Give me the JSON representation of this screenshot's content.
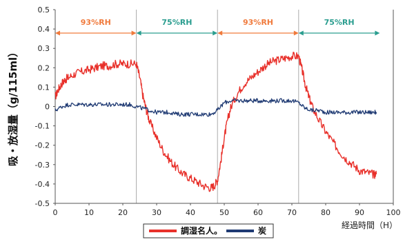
{
  "chart_data": {
    "type": "line",
    "title": "",
    "xlabel": "経過時間（H）",
    "ylabel": "吸・放湿量（g/115ml）",
    "xlim": [
      0,
      100
    ],
    "ylim": [
      -0.5,
      0.5
    ],
    "x_ticks": [
      "0",
      "10",
      "20",
      "30",
      "40",
      "50",
      "60",
      "70",
      "80",
      "90",
      "100"
    ],
    "y_ticks": [
      "0.5",
      "0.4",
      "0.3",
      "0.2",
      "0.1",
      "0",
      "-0.1",
      "-0.2",
      "-0.3",
      "-0.4",
      "-0.5"
    ],
    "grid": false,
    "phases": [
      {
        "label": "93%RH",
        "start": 0,
        "end": 24,
        "color": "#f07a3c"
      },
      {
        "label": "75%RH",
        "start": 24,
        "end": 48,
        "color": "#2a9d8f"
      },
      {
        "label": "93%RH",
        "start": 48,
        "end": 72,
        "color": "#f07a3c"
      },
      {
        "label": "75%RH",
        "start": 72,
        "end": 96,
        "color": "#2a9d8f"
      }
    ],
    "legend_position": "bottom-center",
    "series": [
      {
        "name": "調湿名人。",
        "color": "#e8302a",
        "x": [
          0,
          1,
          2,
          3,
          4,
          6,
          8,
          10,
          12,
          14,
          16,
          18,
          20,
          22,
          24,
          25,
          26,
          27,
          28,
          30,
          32,
          34,
          36,
          38,
          40,
          42,
          44,
          46,
          47,
          48,
          49,
          50,
          51,
          52,
          54,
          56,
          58,
          60,
          62,
          64,
          66,
          68,
          70,
          72,
          73,
          74,
          75,
          76,
          78,
          80,
          82,
          84,
          86,
          88,
          90,
          92,
          94,
          95
        ],
        "y": [
          0.05,
          0.09,
          0.12,
          0.14,
          0.15,
          0.17,
          0.18,
          0.19,
          0.2,
          0.21,
          0.21,
          0.22,
          0.22,
          0.22,
          0.22,
          0.15,
          0.05,
          -0.02,
          -0.08,
          -0.16,
          -0.23,
          -0.28,
          -0.32,
          -0.35,
          -0.37,
          -0.39,
          -0.41,
          -0.42,
          -0.41,
          -0.38,
          -0.28,
          -0.16,
          -0.07,
          0.0,
          0.07,
          0.12,
          0.15,
          0.18,
          0.21,
          0.23,
          0.24,
          0.25,
          0.26,
          0.26,
          0.19,
          0.11,
          0.05,
          0.0,
          -0.07,
          -0.13,
          -0.18,
          -0.23,
          -0.27,
          -0.3,
          -0.33,
          -0.34,
          -0.35,
          -0.35
        ]
      },
      {
        "name": "炭",
        "color": "#1f3a73",
        "x": [
          0,
          2,
          4,
          6,
          8,
          10,
          12,
          14,
          16,
          18,
          20,
          22,
          24,
          26,
          28,
          30,
          32,
          34,
          36,
          38,
          40,
          42,
          44,
          46,
          48,
          50,
          52,
          54,
          56,
          58,
          60,
          62,
          64,
          66,
          68,
          70,
          72,
          74,
          76,
          78,
          80,
          82,
          84,
          86,
          88,
          90,
          92,
          94,
          95
        ],
        "y": [
          -0.02,
          0.0,
          0.01,
          0.01,
          0.01,
          0.01,
          0.01,
          0.01,
          0.01,
          0.01,
          0.01,
          0.01,
          0.0,
          -0.01,
          -0.02,
          -0.03,
          -0.03,
          -0.03,
          -0.04,
          -0.04,
          -0.04,
          -0.04,
          -0.04,
          -0.04,
          -0.02,
          0.02,
          0.03,
          0.03,
          0.03,
          0.03,
          0.03,
          0.03,
          0.03,
          0.03,
          0.03,
          0.03,
          0.02,
          -0.01,
          -0.02,
          -0.02,
          -0.03,
          -0.03,
          -0.03,
          -0.03,
          -0.03,
          -0.03,
          -0.03,
          -0.03,
          -0.03
        ]
      }
    ]
  }
}
